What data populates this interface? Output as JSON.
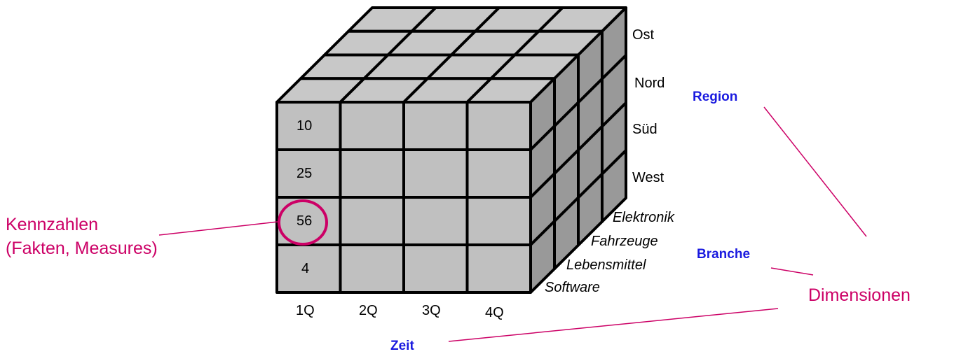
{
  "cube": {
    "values": [
      "10",
      "25",
      "56",
      "4"
    ],
    "quarters": [
      "1Q",
      "2Q",
      "3Q",
      "4Q"
    ],
    "regions": [
      "Ost",
      "Nord",
      "Süd",
      "West"
    ],
    "branches": [
      "Elektronik",
      "Fahrzeuge",
      "Lebensmittel",
      "Software"
    ],
    "highlighted_value": "56"
  },
  "dimensions": {
    "region_label": "Region",
    "branche_label": "Branche",
    "zeit_label": "Zeit",
    "title": "Dimensionen"
  },
  "measures": {
    "line1": "Kennzahlen",
    "line2": "(Fakten, Measures)"
  },
  "colors": {
    "front_face": "#c0c0c0",
    "top_face": "#c8c8c8",
    "side_face": "#999999",
    "edges": "#000000",
    "accent": "#cc0066",
    "dimension_label": "#1a1adf"
  }
}
